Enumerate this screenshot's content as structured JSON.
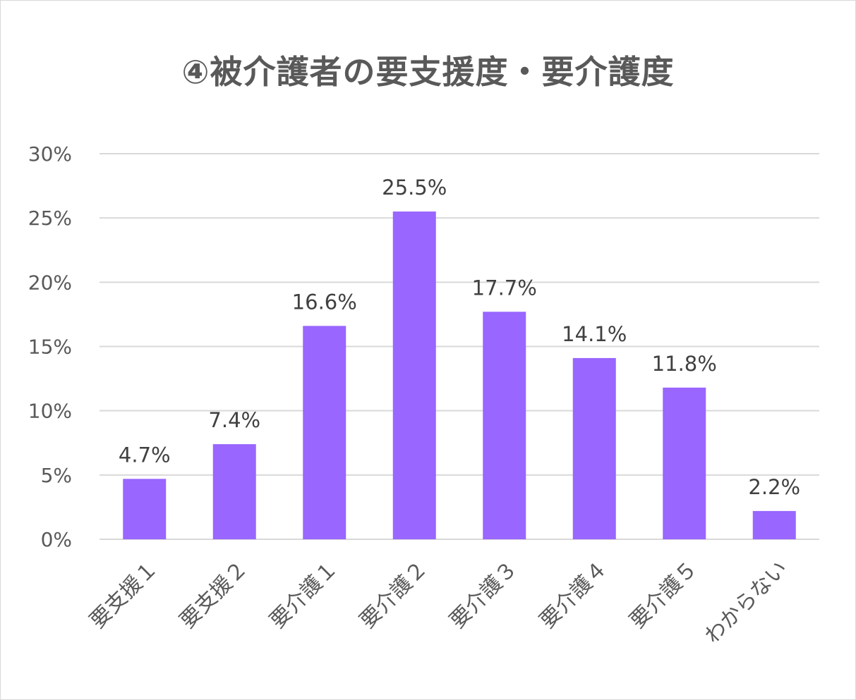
{
  "chart_data": {
    "type": "bar",
    "title": "④被介護者の要支援度・要介護度",
    "categories": [
      "要支援１",
      "要支援２",
      "要介護１",
      "要介護２",
      "要介護３",
      "要介護４",
      "要介護５",
      "わからない"
    ],
    "values": [
      4.7,
      7.4,
      16.6,
      25.5,
      17.7,
      14.1,
      11.8,
      2.2
    ],
    "data_labels": [
      "4.7%",
      "7.4%",
      "16.6%",
      "25.5%",
      "17.7%",
      "14.1%",
      "11.8%",
      "2.2%"
    ],
    "ylim": [
      0,
      30
    ],
    "yticks": [
      "0%",
      "5%",
      "10%",
      "15%",
      "20%",
      "25%",
      "30%"
    ],
    "xlabel": "",
    "ylabel": "",
    "grid": true,
    "legend": "none",
    "bar_color": "#9966ff",
    "grid_color": "#d9d9d9"
  }
}
